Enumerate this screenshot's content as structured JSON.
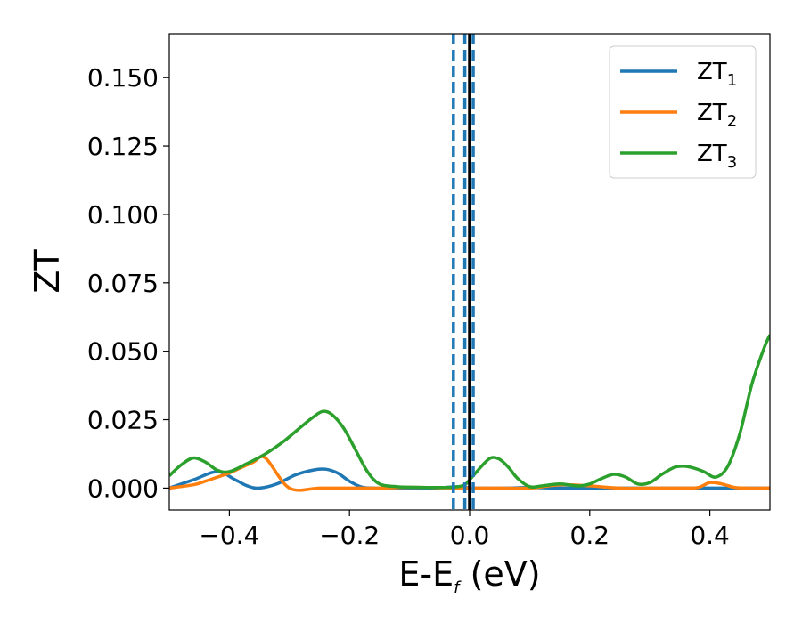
{
  "chart_data": {
    "type": "line",
    "xlabel": {
      "main": "E-E",
      "sub": "f",
      "tail": " (eV)"
    },
    "ylabel": "ZT",
    "xlim": [
      -0.5,
      0.5
    ],
    "ylim": [
      -0.008,
      0.166
    ],
    "xticks": [
      -0.4,
      -0.2,
      0.0,
      0.2,
      0.4
    ],
    "xtick_labels": [
      "−0.4",
      "−0.2",
      "0.0",
      "0.2",
      "0.4"
    ],
    "yticks": [
      0.0,
      0.025,
      0.05,
      0.075,
      0.1,
      0.125,
      0.15
    ],
    "ytick_labels": [
      "0.000",
      "0.025",
      "0.050",
      "0.075",
      "0.100",
      "0.125",
      "0.150"
    ],
    "grid": false,
    "legend_position": "top-right",
    "series": [
      {
        "name": "ZT",
        "name_sub": "1",
        "color": "#1f77b4",
        "x": [
          -0.5,
          -0.46,
          -0.42,
          -0.39,
          -0.37,
          -0.35,
          -0.32,
          -0.29,
          -0.26,
          -0.24,
          -0.22,
          -0.2,
          -0.18,
          -0.16,
          -0.14,
          -0.12,
          -0.1,
          -0.06,
          -0.02,
          0.0,
          0.02,
          0.06,
          0.1,
          0.15,
          0.2,
          0.25,
          0.28,
          0.31,
          0.35,
          0.39,
          0.42,
          0.46,
          0.5
        ],
        "y": [
          0.0,
          0.003,
          0.006,
          0.003,
          0.0008,
          0.0,
          0.0016,
          0.0048,
          0.0066,
          0.0069,
          0.0055,
          0.0025,
          0.0004,
          0.0,
          0.0,
          0.0,
          0.0,
          0.0,
          0.0005,
          0.0001,
          0.0,
          0.0,
          0.0002,
          0.0,
          0.0,
          0.0,
          0.0,
          0.0,
          0.0,
          0.0,
          0.0,
          0.0,
          0.0
        ]
      },
      {
        "name": "ZT",
        "name_sub": "2",
        "color": "#ff7f0e",
        "x": [
          -0.5,
          -0.46,
          -0.44,
          -0.42,
          -0.4,
          -0.38,
          -0.36,
          -0.34,
          -0.3,
          -0.25,
          -0.2,
          -0.15,
          -0.1,
          -0.05,
          0.0,
          0.05,
          0.1,
          0.15,
          0.2,
          0.25,
          0.3,
          0.35,
          0.38,
          0.4,
          0.42,
          0.44,
          0.46,
          0.5
        ],
        "y": [
          0.0,
          0.0012,
          0.0025,
          0.004,
          0.0055,
          0.0075,
          0.0095,
          0.011,
          0.0,
          0.0,
          0.0,
          0.0,
          0.0003,
          0.0001,
          0.0,
          0.0,
          0.0,
          0.0012,
          0.0008,
          0.0,
          0.0,
          0.0,
          0.0002,
          0.002,
          0.0015,
          0.0003,
          0.0,
          0.0
        ]
      },
      {
        "name": "ZT",
        "name_sub": "3",
        "color": "#2ca02c",
        "x": [
          -0.5,
          -0.48,
          -0.46,
          -0.44,
          -0.42,
          -0.4,
          -0.37,
          -0.34,
          -0.31,
          -0.28,
          -0.26,
          -0.245,
          -0.23,
          -0.21,
          -0.19,
          -0.17,
          -0.15,
          -0.12,
          -0.09,
          -0.06,
          -0.03,
          -0.01,
          0.0,
          0.02,
          0.035,
          0.05,
          0.065,
          0.08,
          0.1,
          0.12,
          0.15,
          0.18,
          0.2,
          0.22,
          0.24,
          0.26,
          0.28,
          0.3,
          0.32,
          0.34,
          0.355,
          0.37,
          0.39,
          0.41,
          0.43,
          0.45,
          0.47,
          0.49,
          0.5
        ],
        "y": [
          0.0045,
          0.0085,
          0.011,
          0.0095,
          0.0065,
          0.006,
          0.009,
          0.0125,
          0.017,
          0.0225,
          0.026,
          0.028,
          0.027,
          0.022,
          0.014,
          0.006,
          0.0015,
          0.0005,
          0.0003,
          0.0002,
          0.0003,
          0.001,
          0.003,
          0.008,
          0.011,
          0.0105,
          0.0075,
          0.0035,
          0.0005,
          0.0008,
          0.0015,
          0.0008,
          0.0015,
          0.0035,
          0.005,
          0.004,
          0.0015,
          0.002,
          0.005,
          0.0075,
          0.008,
          0.0075,
          0.006,
          0.004,
          0.008,
          0.02,
          0.038,
          0.051,
          0.056
        ]
      }
    ],
    "vlines": [
      {
        "x": -0.027,
        "style": "dashed",
        "color": "#1f77b4"
      },
      {
        "x": -0.008,
        "style": "dashed",
        "color": "#1f77b4"
      },
      {
        "x": 0.006,
        "style": "dashed",
        "color": "#1f77b4"
      },
      {
        "x": 0.0,
        "style": "solid",
        "color": "#000000"
      }
    ]
  }
}
